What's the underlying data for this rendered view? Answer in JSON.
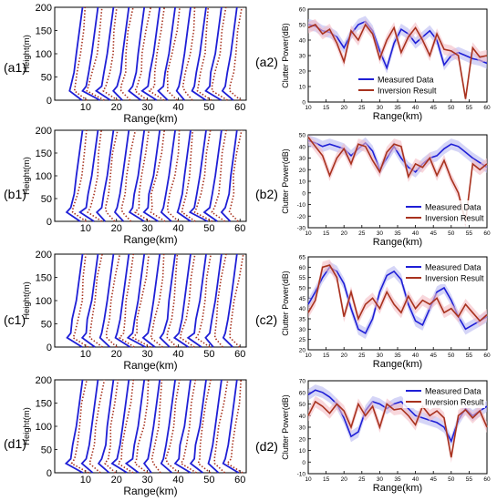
{
  "panel_labels": {
    "a1": "(a1)",
    "b1": "(b1)",
    "c1": "(c1)",
    "d1": "(d1)",
    "a2": "(a2)",
    "b2": "(b2)",
    "c2": "(c2)",
    "d2": "(d2)"
  },
  "colors": {
    "measured": "#1f1fd6",
    "measured_band": "#b9b9f2",
    "inversion": "#a8321e",
    "inversion_band": "#f3bcc4",
    "axis": "#000000"
  },
  "chart_data": [
    {
      "id": "a1",
      "type": "line",
      "xlabel": "Range(km)",
      "ylabel": "Height(m)",
      "xticks": [
        10,
        20,
        30,
        40,
        50,
        60
      ],
      "yticks": [
        0,
        50,
        100,
        150,
        200
      ],
      "xlim": [
        0,
        62
      ],
      "ylim": [
        0,
        200
      ],
      "series": [
        {
          "style": "measured",
          "x": [
            7,
            5.5,
            6,
            7,
            7.5,
            8
          ],
          "y": [
            0,
            30,
            60,
            110,
            160,
            200
          ]
        },
        {
          "style": "inversion",
          "x": [
            9,
            6,
            6.5,
            7.5,
            8,
            8.5
          ],
          "y": [
            0,
            30,
            60,
            110,
            160,
            200
          ]
        }
      ],
      "base_offsets": [
        0,
        5,
        10,
        15,
        20,
        25,
        30,
        35,
        40,
        45,
        50
      ]
    },
    {
      "id": "b1",
      "type": "line",
      "xlabel": "Range(km)",
      "ylabel": "Height(m)",
      "xticks": [
        10,
        20,
        30,
        40,
        50,
        60
      ],
      "yticks": [
        0,
        50,
        100,
        150,
        200
      ],
      "xlim": [
        0,
        62
      ],
      "ylim": [
        0,
        200
      ]
    },
    {
      "id": "c1",
      "type": "line",
      "xlabel": "Range(km)",
      "ylabel": "Height(m)",
      "xticks": [
        10,
        20,
        30,
        40,
        50,
        60
      ],
      "yticks": [
        0,
        50,
        100,
        150,
        200
      ],
      "xlim": [
        0,
        62
      ],
      "ylim": [
        0,
        200
      ]
    },
    {
      "id": "d1",
      "type": "line",
      "xlabel": "Range(km)",
      "ylabel": "Height(m)",
      "xticks": [
        10,
        20,
        30,
        40,
        50,
        60
      ],
      "yticks": [
        0,
        50,
        100,
        150,
        200
      ],
      "xlim": [
        0,
        62
      ],
      "ylim": [
        0,
        200
      ]
    },
    {
      "id": "a2",
      "type": "line",
      "xlabel": "Range(km)",
      "ylabel": "Clutter Power(dB)",
      "xlim": [
        10,
        60
      ],
      "ylim": [
        0,
        60
      ],
      "xticks": [
        10,
        15,
        20,
        25,
        30,
        35,
        40,
        45,
        50,
        55,
        60
      ],
      "yticks": [
        0,
        10,
        20,
        30,
        40,
        50,
        60
      ],
      "legend": "bottom-center",
      "series": [
        {
          "name": "Measured Data",
          "style": "measured",
          "x": [
            10,
            12,
            14,
            16,
            18,
            20,
            22,
            24,
            26,
            28,
            30,
            32,
            34,
            36,
            38,
            40,
            42,
            44,
            46,
            48,
            50,
            52,
            54,
            56,
            58,
            60
          ],
          "y": [
            50,
            49,
            46,
            45,
            42,
            35,
            44,
            50,
            52,
            46,
            33,
            22,
            38,
            47,
            44,
            38,
            42,
            46,
            40,
            24,
            30,
            32,
            30,
            28,
            27,
            25
          ]
        },
        {
          "name": "Inversion Result",
          "style": "inversion",
          "x": [
            10,
            12,
            14,
            16,
            18,
            20,
            22,
            24,
            26,
            28,
            30,
            32,
            34,
            36,
            38,
            40,
            42,
            44,
            46,
            48,
            50,
            52,
            54,
            56,
            58,
            60
          ],
          "y": [
            48,
            50,
            44,
            47,
            38,
            26,
            46,
            40,
            50,
            44,
            28,
            40,
            48,
            32,
            42,
            48,
            40,
            30,
            44,
            34,
            33,
            30,
            2,
            35,
            29,
            30
          ]
        }
      ]
    },
    {
      "id": "b2",
      "type": "line",
      "xlabel": "Range(km)",
      "ylabel": "Clutter Power(dB)",
      "xlim": [
        10,
        60
      ],
      "ylim": [
        -30,
        50
      ],
      "xticks": [
        10,
        15,
        20,
        25,
        30,
        35,
        40,
        45,
        50,
        55,
        60
      ],
      "yticks": [
        -30,
        -20,
        -10,
        0,
        10,
        20,
        30,
        40,
        50
      ],
      "legend": "bottom-right",
      "series": [
        {
          "name": "Measured Data",
          "style": "measured",
          "x": [
            10,
            12,
            14,
            16,
            18,
            20,
            22,
            24,
            26,
            28,
            30,
            32,
            34,
            36,
            38,
            40,
            42,
            44,
            46,
            48,
            50,
            52,
            54,
            56,
            58,
            60
          ],
          "y": [
            45,
            43,
            40,
            42,
            40,
            38,
            32,
            38,
            43,
            36,
            20,
            30,
            40,
            30,
            22,
            18,
            25,
            30,
            32,
            38,
            42,
            40,
            35,
            30,
            26,
            22
          ]
        },
        {
          "name": "Inversion Result",
          "style": "inversion",
          "x": [
            10,
            12,
            14,
            16,
            18,
            20,
            22,
            24,
            26,
            28,
            30,
            32,
            34,
            36,
            38,
            40,
            42,
            44,
            46,
            48,
            50,
            52,
            54,
            56,
            58,
            60
          ],
          "y": [
            48,
            40,
            32,
            15,
            30,
            38,
            25,
            42,
            40,
            28,
            18,
            35,
            42,
            40,
            14,
            25,
            22,
            30,
            15,
            28,
            12,
            0,
            -25,
            25,
            20,
            25
          ]
        }
      ]
    },
    {
      "id": "c2",
      "type": "line",
      "xlabel": "Range(km)",
      "ylabel": "Clutter Power(dB)",
      "xlim": [
        10,
        60
      ],
      "ylim": [
        20,
        65
      ],
      "xticks": [
        10,
        15,
        20,
        25,
        30,
        35,
        40,
        45,
        50,
        55,
        60
      ],
      "yticks": [
        20,
        25,
        30,
        35,
        40,
        45,
        50,
        55,
        60,
        65
      ],
      "legend": "top-right",
      "series": [
        {
          "name": "Measured Data",
          "style": "measured",
          "x": [
            10,
            12,
            14,
            16,
            18,
            20,
            22,
            24,
            26,
            28,
            30,
            32,
            34,
            36,
            38,
            40,
            42,
            44,
            46,
            48,
            50,
            52,
            54,
            56,
            58,
            60
          ],
          "y": [
            42,
            48,
            55,
            60,
            58,
            52,
            40,
            30,
            28,
            35,
            48,
            56,
            58,
            54,
            42,
            34,
            32,
            40,
            48,
            50,
            44,
            36,
            30,
            32,
            34,
            36
          ]
        },
        {
          "name": "Inversion Result",
          "style": "inversion",
          "x": [
            10,
            12,
            14,
            16,
            18,
            20,
            22,
            24,
            26,
            28,
            30,
            32,
            34,
            36,
            38,
            40,
            42,
            44,
            46,
            48,
            50,
            52,
            54,
            56,
            58,
            60
          ],
          "y": [
            38,
            44,
            60,
            61,
            55,
            36,
            48,
            35,
            42,
            45,
            40,
            48,
            42,
            38,
            46,
            40,
            44,
            42,
            45,
            38,
            40,
            36,
            42,
            38,
            34,
            37
          ]
        }
      ]
    },
    {
      "id": "d2",
      "type": "line",
      "xlabel": "Range(km)",
      "ylabel": "Clutter Power(dB)",
      "xlim": [
        10,
        60
      ],
      "ylim": [
        -10,
        70
      ],
      "xticks": [
        10,
        15,
        20,
        25,
        30,
        35,
        40,
        45,
        50,
        55,
        60
      ],
      "yticks": [
        -10,
        0,
        10,
        20,
        30,
        40,
        50,
        60,
        70
      ],
      "legend": "top-right",
      "series": [
        {
          "name": "Measured Data",
          "style": "measured",
          "x": [
            10,
            12,
            14,
            16,
            18,
            20,
            22,
            24,
            26,
            28,
            30,
            32,
            34,
            36,
            38,
            40,
            42,
            44,
            46,
            48,
            50,
            52,
            54,
            56,
            58,
            60
          ],
          "y": [
            58,
            62,
            60,
            56,
            50,
            38,
            22,
            26,
            44,
            52,
            50,
            46,
            50,
            52,
            46,
            40,
            38,
            36,
            34,
            30,
            18,
            36,
            46,
            40,
            44,
            48
          ]
        },
        {
          "name": "Inversion Result",
          "style": "inversion",
          "x": [
            10,
            12,
            14,
            16,
            18,
            20,
            22,
            24,
            26,
            28,
            30,
            32,
            34,
            36,
            38,
            40,
            42,
            44,
            46,
            48,
            50,
            52,
            54,
            56,
            58,
            60
          ],
          "y": [
            40,
            52,
            48,
            42,
            50,
            44,
            30,
            50,
            40,
            48,
            30,
            50,
            45,
            46,
            40,
            32,
            48,
            40,
            44,
            38,
            4,
            40,
            45,
            38,
            44,
            30
          ]
        }
      ]
    }
  ]
}
